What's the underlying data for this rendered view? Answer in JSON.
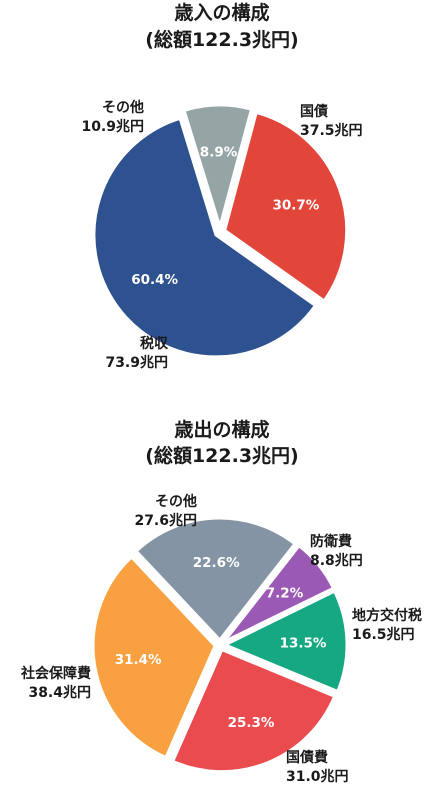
{
  "chart_data": [
    {
      "type": "pie",
      "title": "歳入の構成",
      "subtitle": "(総額122.3兆円)",
      "unit": "兆円",
      "slices": [
        {
          "label": "国債",
          "value": 37.5,
          "value_text": "37.5兆円",
          "percent": 30.7,
          "percent_text": "30.7%",
          "color": "#e2453a"
        },
        {
          "label": "税収",
          "value": 73.9,
          "value_text": "73.9兆円",
          "percent": 60.4,
          "percent_text": "60.4%",
          "color": "#2e5190"
        },
        {
          "label": "その他",
          "value": 10.9,
          "value_text": "10.9兆円",
          "percent": 8.9,
          "percent_text": "8.9%",
          "color": "#95a5a6"
        }
      ]
    },
    {
      "type": "pie",
      "title": "歳出の構成",
      "subtitle": "(総額122.3兆円)",
      "unit": "兆円",
      "slices": [
        {
          "label": "防衛費",
          "value": 8.8,
          "value_text": "8.8兆円",
          "percent": 7.2,
          "percent_text": "7.2%",
          "color": "#9b59b6"
        },
        {
          "label": "地方交付税",
          "value": 16.5,
          "value_text": "16.5兆円",
          "percent": 13.5,
          "percent_text": "13.5%",
          "color": "#16a882"
        },
        {
          "label": "国債費",
          "value": 31.0,
          "value_text": "31.0兆円",
          "percent": 25.3,
          "percent_text": "25.3%",
          "color": "#ea4b4e"
        },
        {
          "label": "社会保障費",
          "value": 38.4,
          "value_text": "38.4兆円",
          "percent": 31.4,
          "percent_text": "31.4%",
          "color": "#f9a040"
        },
        {
          "label": "その他",
          "value": 27.6,
          "value_text": "27.6兆円",
          "percent": 22.6,
          "percent_text": "22.6%",
          "color": "#8494a4"
        }
      ]
    }
  ]
}
